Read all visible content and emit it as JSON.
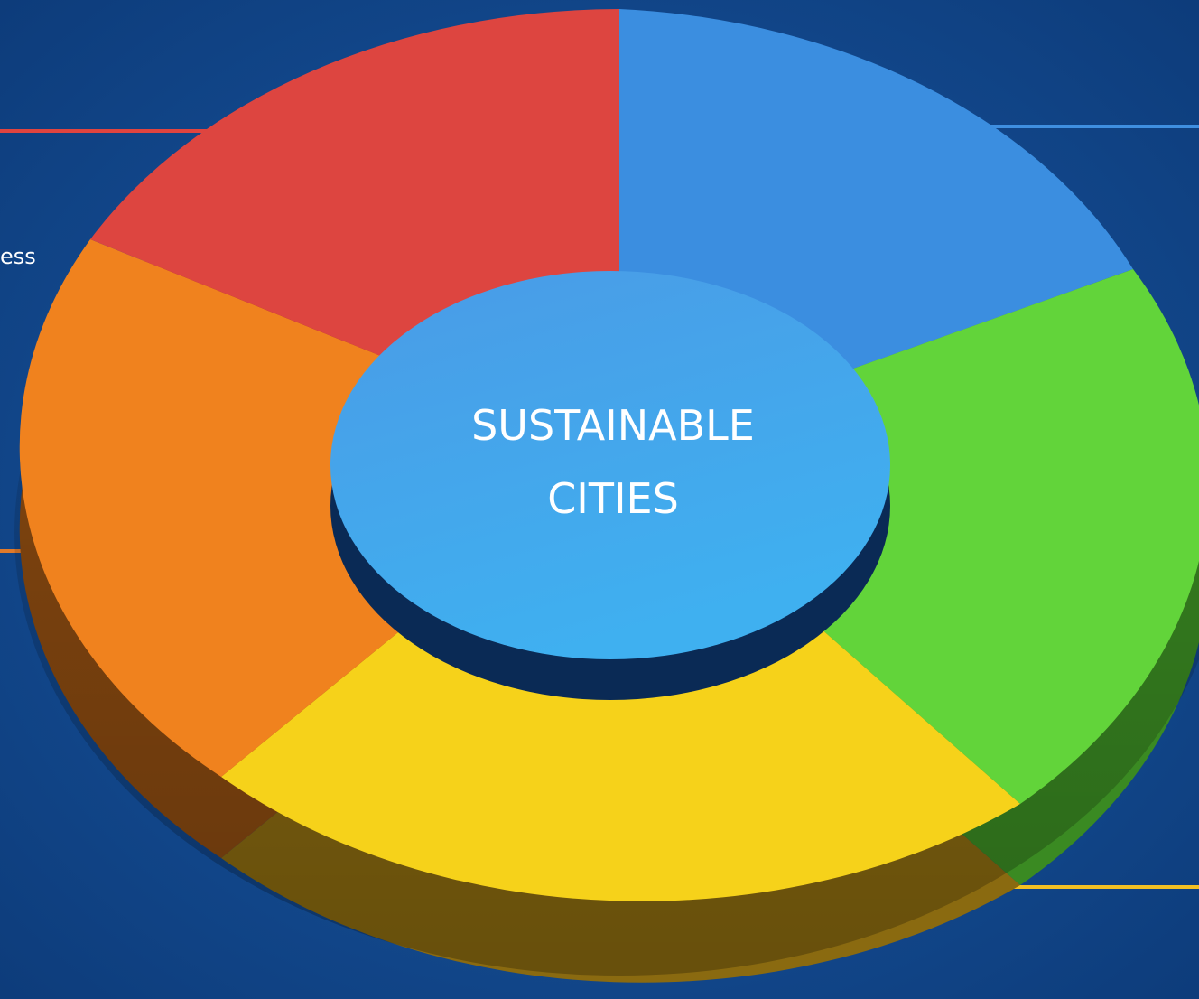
{
  "center": {
    "label_lines": [
      "SUSTAINABLE",
      "CITIES"
    ]
  },
  "side_text": "ess"
}
